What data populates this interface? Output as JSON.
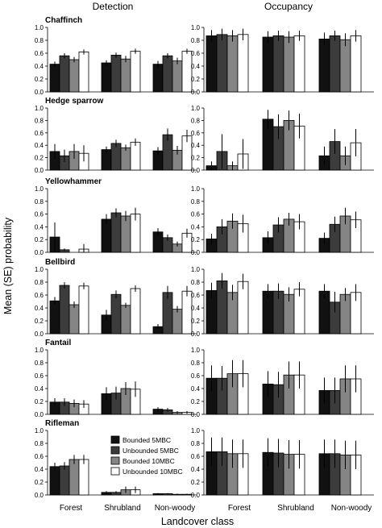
{
  "figure": {
    "col_titles": [
      "Detection",
      "Occupancy"
    ],
    "ylabel": "Mean (SE) probability",
    "xlabel": "Landcover class",
    "yticks": [
      "0.0",
      "0.2",
      "0.4",
      "0.6",
      "0.8",
      "1.0"
    ],
    "categories": [
      "Forest",
      "Shrubland",
      "Non-woody"
    ],
    "legend": {
      "placement": "inside-bottom-left-detection-panel",
      "entries": [
        {
          "name": "Bounded 5MBC",
          "color": "#111111"
        },
        {
          "name": "Unbounded 5MBC",
          "color": "#3c3c3c"
        },
        {
          "name": "Bounded 10MBC",
          "color": "#858585"
        },
        {
          "name": "Unbounded 10MBC",
          "color": "#ffffff"
        }
      ]
    },
    "species": [
      "Chaffinch",
      "Hedge sparrow",
      "Yellowhammer",
      "Bellbird",
      "Fantail",
      "Rifleman"
    ]
  },
  "chart_data": {
    "type": "bar",
    "ylim": [
      0,
      1
    ],
    "grid": false,
    "error_bars": "SE",
    "panels": [
      {
        "species": "Chaffinch",
        "measure": "Detection",
        "values": [
          [
            0.43,
            0.56,
            0.5,
            0.62
          ],
          [
            0.45,
            0.57,
            0.51,
            0.63
          ],
          [
            0.43,
            0.56,
            0.48,
            0.63
          ]
        ],
        "se": [
          [
            0.04,
            0.04,
            0.04,
            0.04
          ],
          [
            0.04,
            0.04,
            0.05,
            0.04
          ],
          [
            0.05,
            0.04,
            0.05,
            0.04
          ]
        ]
      },
      {
        "species": "Chaffinch",
        "measure": "Occupancy",
        "values": [
          [
            0.87,
            0.89,
            0.87,
            0.89
          ],
          [
            0.85,
            0.87,
            0.85,
            0.87
          ],
          [
            0.82,
            0.87,
            0.81,
            0.87
          ]
        ],
        "se": [
          [
            0.09,
            0.09,
            0.09,
            0.09
          ],
          [
            0.09,
            0.08,
            0.09,
            0.08
          ],
          [
            0.1,
            0.08,
            0.1,
            0.09
          ]
        ]
      },
      {
        "species": "Hedge sparrow",
        "measure": "Detection",
        "values": [
          [
            0.3,
            0.23,
            0.3,
            0.27
          ],
          [
            0.33,
            0.43,
            0.36,
            0.45
          ],
          [
            0.31,
            0.57,
            0.32,
            0.55
          ]
        ],
        "se": [
          [
            0.12,
            0.1,
            0.12,
            0.13
          ],
          [
            0.05,
            0.06,
            0.05,
            0.06
          ],
          [
            0.06,
            0.1,
            0.07,
            0.1
          ]
        ]
      },
      {
        "species": "Hedge sparrow",
        "measure": "Occupancy",
        "values": [
          [
            0.07,
            0.3,
            0.07,
            0.26
          ],
          [
            0.82,
            0.7,
            0.8,
            0.71
          ],
          [
            0.23,
            0.46,
            0.23,
            0.44
          ]
        ],
        "se": [
          [
            0.07,
            0.28,
            0.07,
            0.24
          ],
          [
            0.15,
            0.2,
            0.16,
            0.2
          ],
          [
            0.15,
            0.2,
            0.15,
            0.22
          ]
        ]
      },
      {
        "species": "Yellowhammer",
        "measure": "Detection",
        "values": [
          [
            0.24,
            0.04,
            0.0,
            0.05
          ],
          [
            0.52,
            0.62,
            0.57,
            0.6
          ],
          [
            0.32,
            0.23,
            0.13,
            0.3
          ]
        ],
        "se": [
          [
            0.23,
            0.02,
            0.0,
            0.08
          ],
          [
            0.08,
            0.07,
            0.08,
            0.1
          ],
          [
            0.06,
            0.05,
            0.04,
            0.07
          ]
        ]
      },
      {
        "species": "Yellowhammer",
        "measure": "Occupancy",
        "values": [
          [
            0.21,
            0.4,
            0.49,
            0.45
          ],
          [
            0.23,
            0.43,
            0.52,
            0.48
          ],
          [
            0.22,
            0.44,
            0.57,
            0.51
          ]
        ],
        "se": [
          [
            0.08,
            0.12,
            0.12,
            0.14
          ],
          [
            0.1,
            0.12,
            0.1,
            0.12
          ],
          [
            0.09,
            0.12,
            0.13,
            0.13
          ]
        ]
      },
      {
        "species": "Bellbird",
        "measure": "Detection",
        "values": [
          [
            0.51,
            0.75,
            0.45,
            0.74
          ],
          [
            0.29,
            0.61,
            0.44,
            0.7
          ],
          [
            0.11,
            0.64,
            0.38,
            0.66
          ]
        ],
        "se": [
          [
            0.06,
            0.05,
            0.05,
            0.05
          ],
          [
            0.08,
            0.06,
            0.04,
            0.05
          ],
          [
            0.04,
            0.1,
            0.05,
            0.08
          ]
        ]
      },
      {
        "species": "Bellbird",
        "measure": "Occupancy",
        "values": [
          [
            0.67,
            0.82,
            0.64,
            0.81
          ],
          [
            0.66,
            0.66,
            0.61,
            0.69
          ],
          [
            0.66,
            0.49,
            0.61,
            0.64
          ]
        ],
        "se": [
          [
            0.12,
            0.12,
            0.12,
            0.12
          ],
          [
            0.11,
            0.12,
            0.11,
            0.11
          ],
          [
            0.11,
            0.16,
            0.1,
            0.13
          ]
        ]
      },
      {
        "species": "Fantail",
        "measure": "Detection",
        "values": [
          [
            0.19,
            0.19,
            0.17,
            0.16
          ],
          [
            0.32,
            0.33,
            0.4,
            0.39
          ],
          [
            0.08,
            0.07,
            0.03,
            0.03
          ]
        ],
        "se": [
          [
            0.06,
            0.06,
            0.06,
            0.06
          ],
          [
            0.1,
            0.1,
            0.1,
            0.12
          ],
          [
            0.03,
            0.03,
            0.02,
            0.02
          ]
        ]
      },
      {
        "species": "Fantail",
        "measure": "Occupancy",
        "values": [
          [
            0.56,
            0.56,
            0.63,
            0.63
          ],
          [
            0.47,
            0.46,
            0.61,
            0.61
          ],
          [
            0.37,
            0.37,
            0.55,
            0.55
          ]
        ],
        "se": [
          [
            0.2,
            0.19,
            0.21,
            0.21
          ],
          [
            0.2,
            0.2,
            0.21,
            0.21
          ],
          [
            0.2,
            0.2,
            0.21,
            0.21
          ]
        ]
      },
      {
        "species": "Rifleman",
        "measure": "Detection",
        "values": [
          [
            0.44,
            0.45,
            0.55,
            0.55
          ],
          [
            0.04,
            0.04,
            0.08,
            0.08
          ],
          [
            0.02,
            0.02,
            0.01,
            0.01
          ]
        ],
        "se": [
          [
            0.06,
            0.06,
            0.07,
            0.07
          ],
          [
            0.02,
            0.02,
            0.05,
            0.05
          ],
          [
            0.01,
            0.01,
            0.01,
            0.01
          ]
        ]
      },
      {
        "species": "Rifleman",
        "measure": "Occupancy",
        "values": [
          [
            0.67,
            0.67,
            0.64,
            0.64
          ],
          [
            0.66,
            0.65,
            0.63,
            0.63
          ],
          [
            0.64,
            0.64,
            0.62,
            0.62
          ]
        ],
        "se": [
          [
            0.22,
            0.22,
            0.22,
            0.22
          ],
          [
            0.22,
            0.22,
            0.22,
            0.22
          ],
          [
            0.22,
            0.22,
            0.22,
            0.22
          ]
        ]
      }
    ]
  }
}
